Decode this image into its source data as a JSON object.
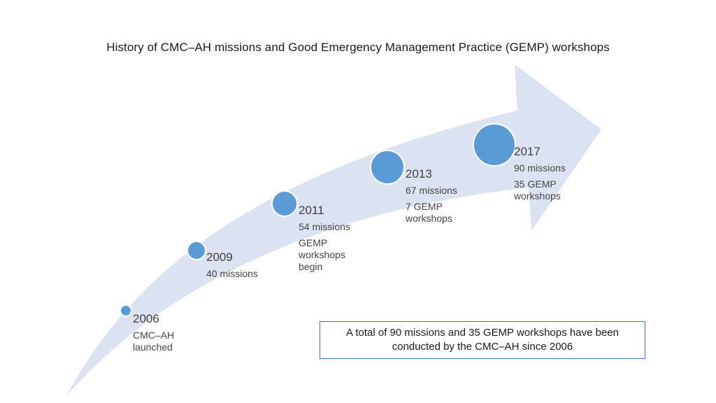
{
  "title": "History of CMC–AH missions and Good Emergency Management Practice (GEMP) workshops",
  "colors": {
    "arrow": "#dbe3f2",
    "dot": "#5b9bd5",
    "box_border": "#4472c4"
  },
  "milestones": [
    {
      "year": "2006",
      "lines": [
        "CMC–AH launched"
      ]
    },
    {
      "year": "2009",
      "lines": [
        "40 missions"
      ]
    },
    {
      "year": "2011",
      "lines": [
        "54 missions",
        "GEMP workshops begin"
      ]
    },
    {
      "year": "2013",
      "lines": [
        "67 missions",
        "7 GEMP workshops"
      ]
    },
    {
      "year": "2017",
      "lines": [
        "90 missions",
        "35 GEMP workshops"
      ]
    }
  ],
  "summary": "A total of 90 missions and 35 GEMP workshops have been conducted by the CMC–AH since 2006"
}
